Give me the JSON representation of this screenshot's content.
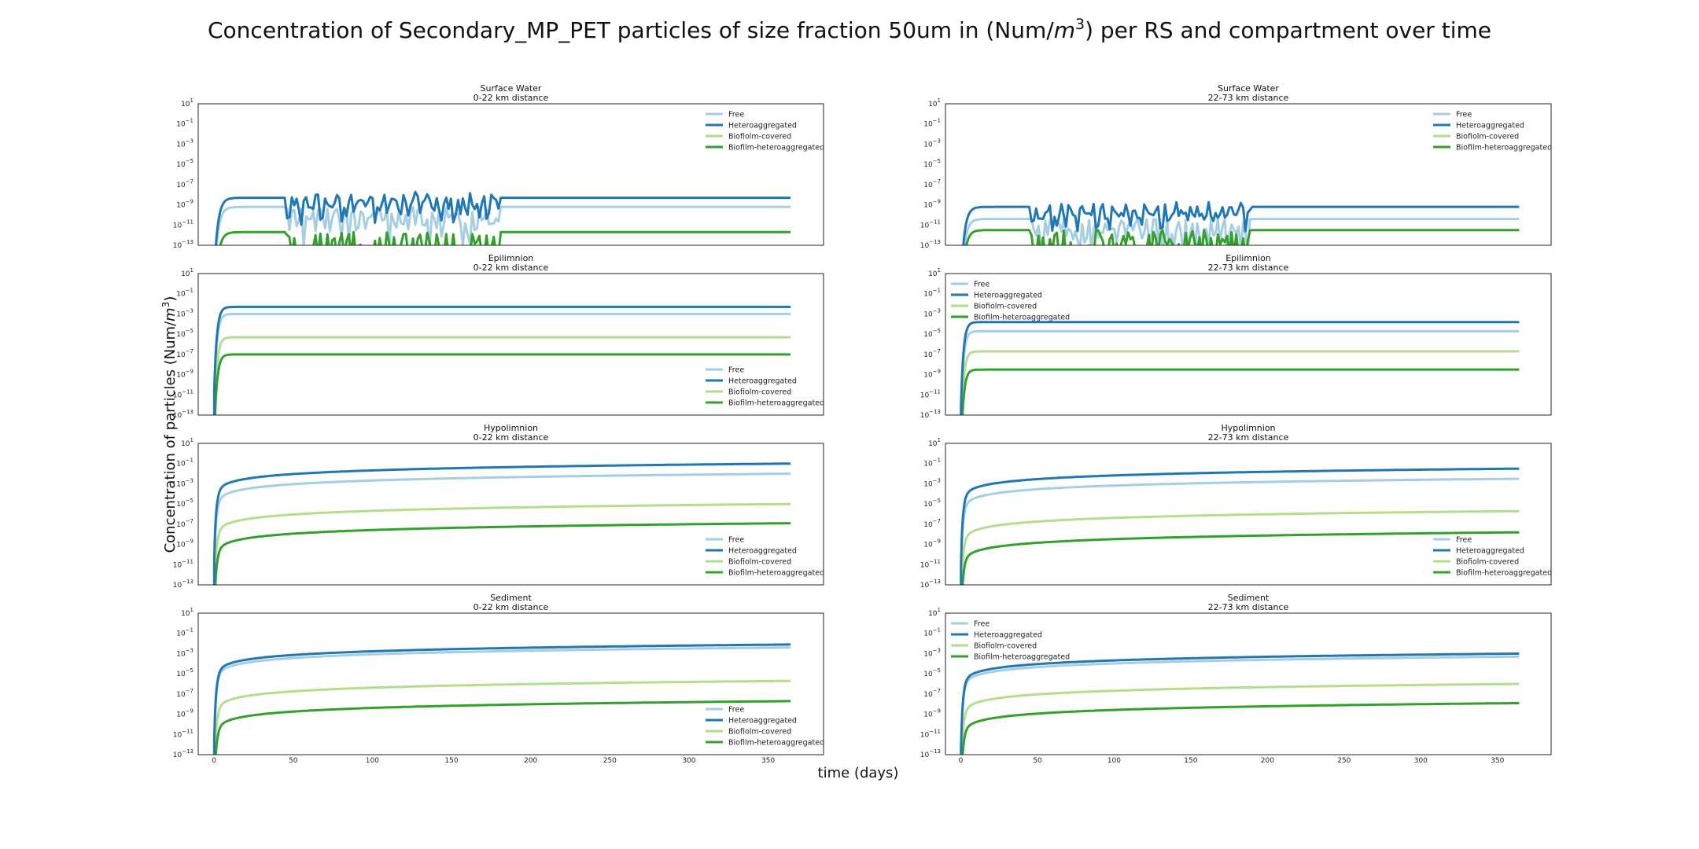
{
  "figure": {
    "title_pre": "Concentration of Secondary_MP_PET particles of size fraction 50um in (Num/",
    "title_m": "m",
    "title_exp": "3",
    "title_post": ") per RS and compartment over time",
    "ylabel_pre": "Concentration of particles (Num/",
    "ylabel_m": "m",
    "ylabel_exp": "3",
    "ylabel_post": ")",
    "xlabel": "time (days)"
  },
  "chart_data": {
    "type": "line",
    "yscale": "log",
    "ylim_exp": [
      -13,
      1
    ],
    "yticks_exp": [
      1,
      -1,
      -3,
      -5,
      -7,
      -9,
      -11,
      -13
    ],
    "ytick_base": "10",
    "xlim": [
      -10,
      385
    ],
    "xticks": [
      0,
      50,
      100,
      150,
      200,
      250,
      300,
      350
    ],
    "grid": false,
    "series_names": [
      "Free",
      "Heteroaggregated",
      "Biofiolm-covered",
      "Biofilm-heteroaggregated"
    ],
    "series_colors": [
      "#a6cee3",
      "#1f78b4",
      "#b2df8a",
      "#33a02c"
    ],
    "panels": [
      {
        "compartment": "Surface Water",
        "distance": "0-22 km distance",
        "legend": "top-right",
        "final_log10": [
          -9.2,
          -8.3,
          -13.3,
          -11.7
        ],
        "pattern": "oscillating"
      },
      {
        "compartment": "Surface Water",
        "distance": "22-73 km distance",
        "legend": "top-right",
        "final_log10": [
          -10.4,
          -9.2,
          -13.4,
          -11.5
        ],
        "pattern": "oscillating"
      },
      {
        "compartment": "Epilimnion",
        "distance": "0-22 km distance",
        "legend": "bottom-right",
        "final_log10": [
          -3.0,
          -2.3,
          -5.3,
          -7.0
        ],
        "pattern": "saturating"
      },
      {
        "compartment": "Epilimnion",
        "distance": "22-73 km distance",
        "legend": "top-left",
        "final_log10": [
          -4.7,
          -3.8,
          -6.7,
          -8.5
        ],
        "pattern": "saturating"
      },
      {
        "compartment": "Hypolimnion",
        "distance": "0-22 km distance",
        "legend": "bottom-right",
        "final_log10": [
          -2.0,
          -1.0,
          -5.0,
          -6.9
        ],
        "pattern": "slow-rise"
      },
      {
        "compartment": "Hypolimnion",
        "distance": "22-73 km distance",
        "legend": "bottom-right",
        "final_log10": [
          -2.5,
          -1.5,
          -5.7,
          -7.8
        ],
        "pattern": "slow-rise"
      },
      {
        "compartment": "Sediment",
        "distance": "0-22 km distance",
        "legend": "bottom-right",
        "final_log10": [
          -2.4,
          -2.1,
          -5.7,
          -7.7
        ],
        "pattern": "slow-rise"
      },
      {
        "compartment": "Sediment",
        "distance": "22-73 km distance",
        "legend": "top-left",
        "final_log10": [
          -3.3,
          -3.0,
          -6.0,
          -7.9
        ],
        "pattern": "slow-rise"
      }
    ]
  }
}
